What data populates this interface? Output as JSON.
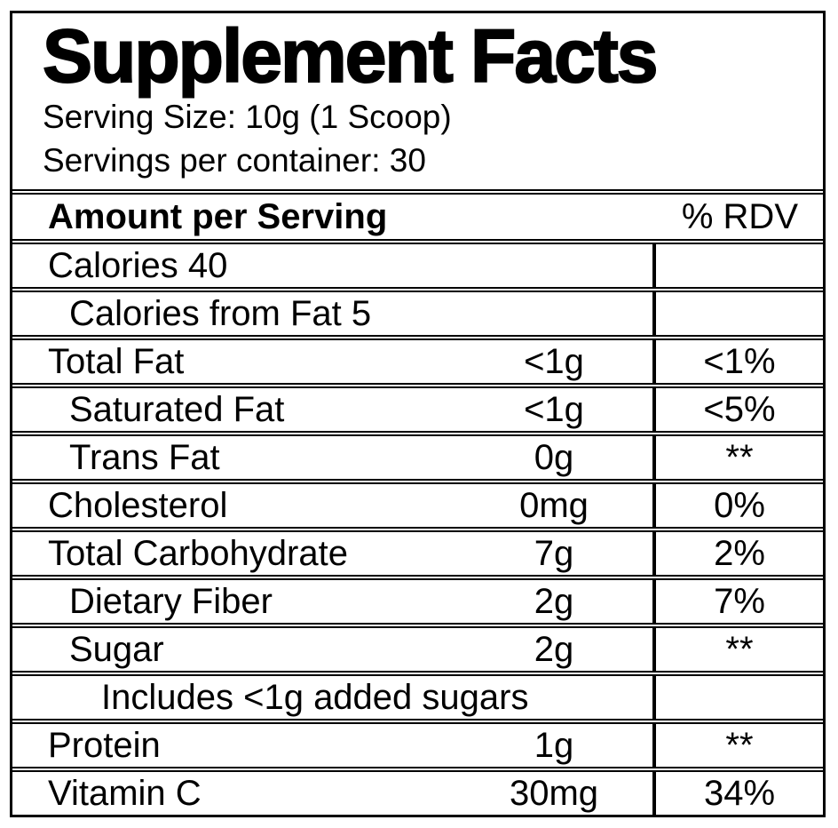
{
  "title": "Supplement Facts",
  "serving_size": "Serving Size: 10g (1 Scoop)",
  "servings_per_container": "Servings per container: 30",
  "header": {
    "left": "Amount per Serving",
    "right": "% RDV"
  },
  "rows": [
    {
      "name": "Calories 40",
      "amount": "",
      "rdv": "",
      "indent": 0
    },
    {
      "name": "Calories from Fat 5",
      "amount": "",
      "rdv": "",
      "indent": 1
    },
    {
      "name": "Total Fat",
      "amount": "<1g",
      "rdv": "<1%",
      "indent": 0
    },
    {
      "name": "Saturated Fat",
      "amount": "<1g",
      "rdv": "<5%",
      "indent": 1
    },
    {
      "name": "Trans Fat",
      "amount": "0g",
      "rdv": "**",
      "indent": 1
    },
    {
      "name": "Cholesterol",
      "amount": "0mg",
      "rdv": "0%",
      "indent": 0
    },
    {
      "name": "Total Carbohydrate",
      "amount": "7g",
      "rdv": "2%",
      "indent": 0
    },
    {
      "name": "Dietary Fiber",
      "amount": "2g",
      "rdv": "7%",
      "indent": 1
    },
    {
      "name": "Sugar",
      "amount": "2g",
      "rdv": "**",
      "indent": 1
    },
    {
      "name": "Includes <1g added sugars",
      "amount": "",
      "rdv": "",
      "indent": 2
    },
    {
      "name": "Protein",
      "amount": "1g",
      "rdv": "**",
      "indent": 0
    },
    {
      "name": "Vitamin C",
      "amount": "30mg",
      "rdv": "34%",
      "indent": 0
    }
  ],
  "colors": {
    "border": "#000000",
    "text": "#000000",
    "background": "#ffffff"
  }
}
